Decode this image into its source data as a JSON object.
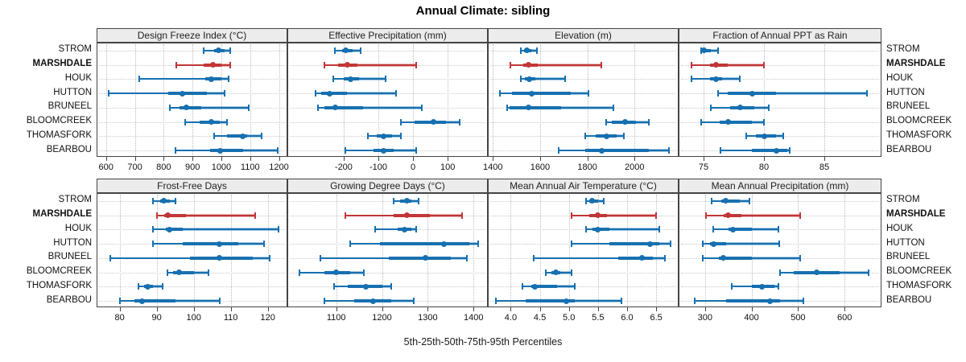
{
  "title": "Annual Climate: sibling",
  "caption": "5th-25th-50th-75th-95th Percentiles",
  "sites": [
    "STROM",
    "MARSHDALE",
    "HOUK",
    "HUTTON",
    "BRUNEEL",
    "BLOOMCREEK",
    "THOMASFORK",
    "BEARBOU"
  ],
  "highlighted_site": "MARSHDALE",
  "colors": {
    "series": "#1770B0",
    "highlight": "#C13636",
    "strip_bg": "#ECECEC",
    "panel_border": "#444444",
    "grid": "#BDBDBD"
  },
  "chart_data": {
    "type": "dotplot",
    "subtype": "percentile-interval-panels",
    "percentiles": [
      5,
      25,
      50,
      75,
      95
    ],
    "legend_note": "median dot, 25th-75th thick band, 5th-95th whiskers with end caps; MARSHDALE highlighted in red",
    "grid": "dotted",
    "panels": [
      {
        "title": "Design Freeze Index (°C)",
        "row": 0,
        "col": 0,
        "ticks": [
          "600",
          "700",
          "800",
          "900",
          "1000",
          "1100",
          "1200"
        ],
        "xlim": [
          570,
          1232
        ],
        "values": [
          [
            940,
            975,
            990,
            1010,
            1030
          ],
          [
            845,
            940,
            970,
            1000,
            1030
          ],
          [
            715,
            945,
            965,
            1000,
            1025
          ],
          [
            610,
            815,
            865,
            950,
            1010
          ],
          [
            820,
            855,
            880,
            930,
            1095
          ],
          [
            875,
            925,
            965,
            995,
            1020
          ],
          [
            975,
            1020,
            1075,
            1090,
            1140
          ],
          [
            840,
            960,
            995,
            1075,
            1195
          ]
        ]
      },
      {
        "title": "Effective Precipitation (mm)",
        "row": 0,
        "col": 1,
        "ticks": [
          "-200",
          "-100",
          "0",
          "100"
        ],
        "xlim": [
          -360,
          218
        ],
        "values": [
          [
            -225,
            -205,
            -195,
            -175,
            -150
          ],
          [
            -255,
            -215,
            -190,
            -160,
            10
          ],
          [
            -230,
            -200,
            -180,
            -155,
            -80
          ],
          [
            -280,
            -265,
            -240,
            -190,
            -50
          ],
          [
            -275,
            -255,
            -225,
            -145,
            25
          ],
          [
            -35,
            5,
            60,
            95,
            135
          ],
          [
            -130,
            -105,
            -85,
            -60,
            -35
          ],
          [
            -195,
            -115,
            -85,
            -55,
            10
          ]
        ]
      },
      {
        "title": "Elevation (m)",
        "row": 0,
        "col": 2,
        "ticks": [
          "1400",
          "1600",
          "1800",
          "2000"
        ],
        "xlim": [
          1382,
          2190
        ],
        "values": [
          [
            1520,
            1532,
            1545,
            1562,
            1585
          ],
          [
            1475,
            1528,
            1550,
            1590,
            1860
          ],
          [
            1518,
            1535,
            1555,
            1580,
            1705
          ],
          [
            1430,
            1480,
            1565,
            1730,
            1805
          ],
          [
            1460,
            1470,
            1550,
            1690,
            1910
          ],
          [
            1880,
            1905,
            1960,
            2005,
            2060
          ],
          [
            1790,
            1835,
            1880,
            1925,
            1955
          ],
          [
            1680,
            1790,
            1860,
            2060,
            2145
          ]
        ]
      },
      {
        "title": "Fraction of Annual PPT as Rain",
        "row": 0,
        "col": 3,
        "ticks": [
          "75",
          "80",
          "85"
        ],
        "xlim": [
          73,
          89.8
        ],
        "values": [
          [
            74.8,
            74.9,
            75,
            75.6,
            76.2
          ],
          [
            74,
            75.5,
            76,
            77,
            80
          ],
          [
            74,
            75.5,
            76,
            76.5,
            78
          ],
          [
            76.2,
            77,
            79,
            81,
            88.5
          ],
          [
            75.6,
            77.2,
            78,
            79.2,
            80.4
          ],
          [
            74.8,
            76.3,
            77,
            79,
            80
          ],
          [
            78.5,
            79.3,
            80,
            81,
            81.6
          ],
          [
            76.4,
            79,
            81,
            81.9,
            82.1
          ]
        ]
      },
      {
        "title": "Frost-Free Days",
        "row": 1,
        "col": 0,
        "ticks": [
          "80",
          "90",
          "100",
          "110",
          "120"
        ],
        "xlim": [
          74,
          125.5
        ],
        "values": [
          [
            89,
            91,
            92,
            93.5,
            95
          ],
          [
            90,
            92,
            93,
            98,
            116.5
          ],
          [
            89,
            92.5,
            93.5,
            97,
            123
          ],
          [
            89,
            97,
            107,
            112,
            119
          ],
          [
            77.5,
            99,
            107,
            116,
            120.5
          ],
          [
            93,
            94.5,
            96,
            100,
            104
          ],
          [
            85,
            86.5,
            87.5,
            89,
            91.5
          ],
          [
            80,
            84,
            86,
            95,
            107
          ]
        ]
      },
      {
        "title": "Growing Degree Days (°C)",
        "row": 1,
        "col": 1,
        "ticks": [
          "1100",
          "1200",
          "1300",
          "1400"
        ],
        "xlim": [
          995,
          1433
        ],
        "values": [
          [
            1225,
            1240,
            1255,
            1265,
            1280
          ],
          [
            1120,
            1225,
            1255,
            1305,
            1375
          ],
          [
            1185,
            1235,
            1250,
            1265,
            1275
          ],
          [
            1130,
            1195,
            1335,
            1390,
            1410
          ],
          [
            1065,
            1215,
            1295,
            1350,
            1385
          ],
          [
            1020,
            1075,
            1100,
            1130,
            1160
          ],
          [
            1095,
            1125,
            1165,
            1200,
            1220
          ],
          [
            1075,
            1140,
            1180,
            1220,
            1270
          ]
        ]
      },
      {
        "title": "Mean Annual Air Temperature (°C)",
        "row": 1,
        "col": 2,
        "ticks": [
          "4.0",
          "4.5",
          "5.0",
          "5.5",
          "6.0",
          "6.5"
        ],
        "xlim": [
          3.62,
          6.9
        ],
        "values": [
          [
            5.3,
            5.35,
            5.4,
            5.5,
            5.6
          ],
          [
            5.05,
            5.35,
            5.5,
            5.65,
            6.5
          ],
          [
            5.3,
            5.4,
            5.5,
            5.7,
            6.55
          ],
          [
            5.05,
            5.7,
            6.4,
            6.55,
            6.75
          ],
          [
            4.4,
            5.85,
            6.25,
            6.45,
            6.65
          ],
          [
            4.6,
            4.7,
            4.78,
            4.85,
            5.05
          ],
          [
            4.2,
            4.35,
            4.42,
            4.8,
            5.1
          ],
          [
            3.75,
            4.25,
            4.95,
            5.1,
            5.9
          ]
        ]
      },
      {
        "title": "Mean Annual Precipitation (mm)",
        "row": 1,
        "col": 3,
        "ticks": [
          "300",
          "400",
          "500",
          "600"
        ],
        "xlim": [
          245,
          681
        ],
        "values": [
          [
            315,
            335,
            345,
            375,
            395
          ],
          [
            302,
            340,
            350,
            378,
            505
          ],
          [
            318,
            350,
            360,
            400,
            458
          ],
          [
            295,
            310,
            318,
            345,
            460
          ],
          [
            295,
            330,
            340,
            400,
            505
          ],
          [
            462,
            490,
            540,
            590,
            652
          ],
          [
            358,
            400,
            422,
            450,
            458
          ],
          [
            278,
            345,
            440,
            462,
            512
          ]
        ]
      }
    ]
  }
}
